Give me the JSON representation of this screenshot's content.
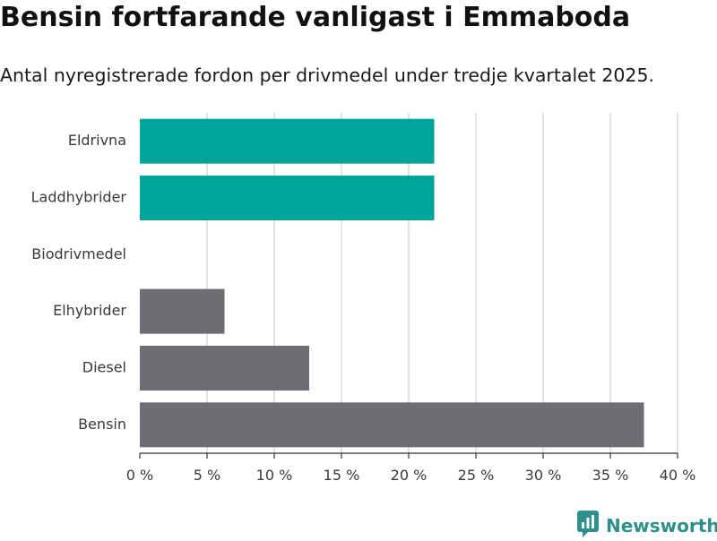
{
  "title": "Bensin fortfarande vanligast i Emmaboda",
  "subtitle": "Antal nyregistrerade fordon per drivmedel under tredje kvartalet 2025.",
  "brand": "Newsworthy",
  "colors": {
    "highlight": "#00a59a",
    "muted": "#6e6d73",
    "grid": "#d9d9d9",
    "axis": "#333333",
    "brand": "#2f8f8a"
  },
  "chart_data": {
    "type": "bar",
    "orientation": "horizontal",
    "categories": [
      "Eldrivna",
      "Laddhybrider",
      "Biodrivmedel",
      "Elhybrider",
      "Diesel",
      "Bensin"
    ],
    "values": [
      21.9,
      21.9,
      0,
      6.3,
      12.6,
      37.5
    ],
    "highlight": [
      true,
      true,
      true,
      false,
      false,
      false
    ],
    "xlim": [
      0,
      40
    ],
    "xticks": [
      0,
      5,
      10,
      15,
      20,
      25,
      30,
      35,
      40
    ],
    "xtick_labels": [
      "0 %",
      "5 %",
      "10 %",
      "15 %",
      "20 %",
      "25 %",
      "30 %",
      "35 %",
      "40 %"
    ],
    "xlabel": "",
    "ylabel": "",
    "grid": true
  }
}
